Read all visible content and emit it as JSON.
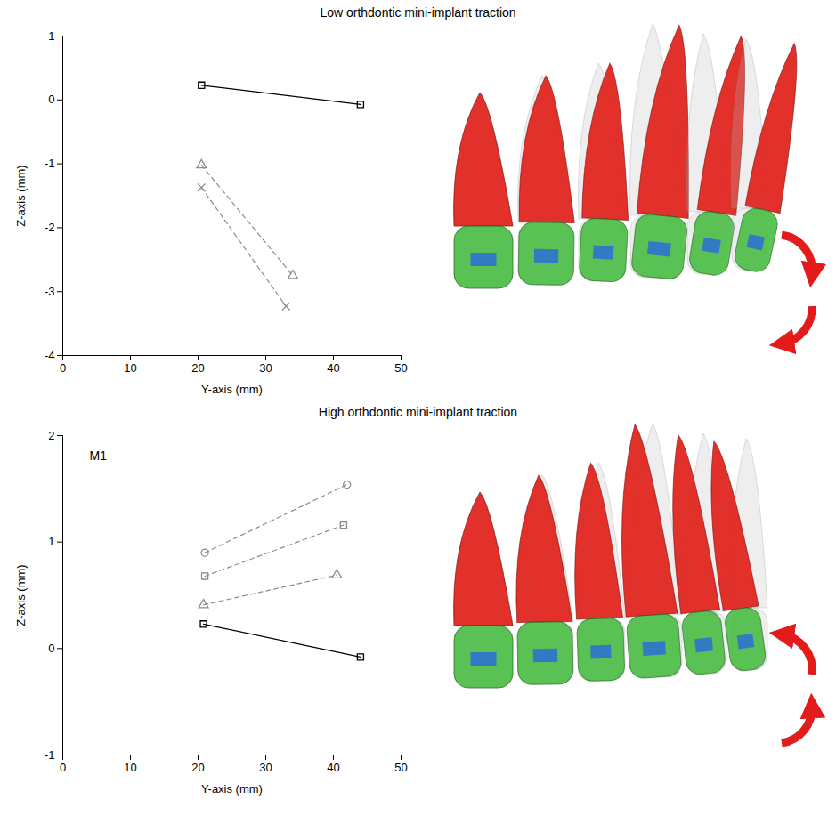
{
  "chart_data": [
    {
      "type": "line",
      "title": "Low orthdontic mini-implant traction",
      "x_label": "Y-axis (mm)",
      "y_label": "Z-axis (mm)",
      "xlim": [
        0,
        50
      ],
      "xticks": [
        0,
        10,
        20,
        30,
        40,
        50
      ],
      "ylim": [
        -4,
        1
      ],
      "yticks": [
        -4,
        -3,
        -2,
        -1,
        0,
        1
      ],
      "series": [
        {
          "color": "#000000",
          "line_style": "solid",
          "marker": "square",
          "x": [
            20.5,
            44
          ],
          "values": [
            0.23,
            -0.07
          ]
        },
        {
          "color": "#8c8c8c",
          "line_style": "dashed",
          "marker": "triangle",
          "x": [
            20.5,
            34
          ],
          "values": [
            -1.02,
            -2.75
          ]
        },
        {
          "color": "#8c8c8c",
          "line_style": "dashed",
          "marker": "cross",
          "x": [
            20.5,
            33
          ],
          "values": [
            -1.37,
            -3.23
          ]
        }
      ]
    },
    {
      "type": "line",
      "title": "High orthdontic mini-implant traction",
      "x_label": "Y-axis (mm)",
      "y_label": "Z-axis (mm)",
      "xlim": [
        0,
        50
      ],
      "xticks": [
        0,
        10,
        20,
        30,
        40,
        50
      ],
      "ylim": [
        -1,
        2
      ],
      "yticks": [
        -1,
        0,
        1,
        2
      ],
      "annotations": [
        {
          "text": "M1"
        }
      ],
      "series": [
        {
          "color": "#000000",
          "line_style": "solid",
          "marker": "square",
          "x": [
            20.8,
            44
          ],
          "values": [
            0.23,
            -0.08
          ]
        },
        {
          "color": "#8c8c8c",
          "line_style": "dashed",
          "marker": "circle",
          "x": [
            21,
            42
          ],
          "values": [
            0.9,
            1.54
          ]
        },
        {
          "color": "#8c8c8c",
          "line_style": "dashed",
          "marker": "square",
          "x": [
            21,
            41.5
          ],
          "values": [
            0.68,
            1.16
          ]
        },
        {
          "color": "#8c8c8c",
          "line_style": "dashed",
          "marker": "triangle",
          "x": [
            20.8,
            40.5
          ],
          "values": [
            0.41,
            0.69
          ]
        }
      ]
    }
  ]
}
